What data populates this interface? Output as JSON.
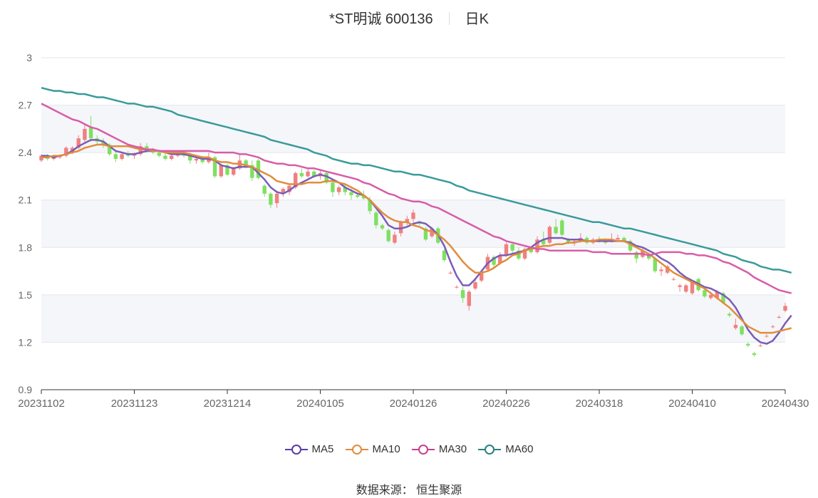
{
  "chart_data": {
    "type": "candlestick",
    "title": "*ST明诚 600136",
    "period_label": "日K",
    "ylim": [
      0.9,
      3.0
    ],
    "y_ticks": [
      "3",
      "2.7",
      "2.4",
      "2.1",
      "1.8",
      "1.5",
      "1.2",
      "0.9"
    ],
    "x_ticks": [
      "20231102",
      "20231123",
      "20231214",
      "20240105",
      "20240126",
      "20240226",
      "20240318",
      "20240410",
      "20240430"
    ],
    "up_color": "#f08080",
    "down_color": "#7ee060",
    "candles": [
      {
        "o": 2.35,
        "h": 2.39,
        "l": 2.34,
        "c": 2.38
      },
      {
        "o": 2.38,
        "h": 2.39,
        "l": 2.35,
        "c": 2.36
      },
      {
        "o": 2.36,
        "h": 2.38,
        "l": 2.35,
        "c": 2.37
      },
      {
        "o": 2.37,
        "h": 2.39,
        "l": 2.36,
        "c": 2.38
      },
      {
        "o": 2.38,
        "h": 2.44,
        "l": 2.37,
        "c": 2.43
      },
      {
        "o": 2.4,
        "h": 2.44,
        "l": 2.39,
        "c": 2.43
      },
      {
        "o": 2.43,
        "h": 2.51,
        "l": 2.42,
        "c": 2.49
      },
      {
        "o": 2.48,
        "h": 2.58,
        "l": 2.46,
        "c": 2.55
      },
      {
        "o": 2.56,
        "h": 2.63,
        "l": 2.47,
        "c": 2.49
      },
      {
        "o": 2.49,
        "h": 2.51,
        "l": 2.45,
        "c": 2.47
      },
      {
        "o": 2.47,
        "h": 2.49,
        "l": 2.43,
        "c": 2.45
      },
      {
        "o": 2.45,
        "h": 2.46,
        "l": 2.38,
        "c": 2.39
      },
      {
        "o": 2.39,
        "h": 2.41,
        "l": 2.34,
        "c": 2.36
      },
      {
        "o": 2.36,
        "h": 2.4,
        "l": 2.35,
        "c": 2.39
      },
      {
        "o": 2.39,
        "h": 2.41,
        "l": 2.37,
        "c": 2.38
      },
      {
        "o": 2.38,
        "h": 2.4,
        "l": 2.36,
        "c": 2.39
      },
      {
        "o": 2.39,
        "h": 2.46,
        "l": 2.38,
        "c": 2.44
      },
      {
        "o": 2.44,
        "h": 2.46,
        "l": 2.4,
        "c": 2.41
      },
      {
        "o": 2.41,
        "h": 2.43,
        "l": 2.39,
        "c": 2.4
      },
      {
        "o": 2.4,
        "h": 2.42,
        "l": 2.37,
        "c": 2.38
      },
      {
        "o": 2.38,
        "h": 2.4,
        "l": 2.35,
        "c": 2.36
      },
      {
        "o": 2.36,
        "h": 2.39,
        "l": 2.35,
        "c": 2.38
      },
      {
        "o": 2.38,
        "h": 2.41,
        "l": 2.37,
        "c": 2.4
      },
      {
        "o": 2.4,
        "h": 2.41,
        "l": 2.37,
        "c": 2.38
      },
      {
        "o": 2.38,
        "h": 2.4,
        "l": 2.33,
        "c": 2.35
      },
      {
        "o": 2.35,
        "h": 2.38,
        "l": 2.33,
        "c": 2.36
      },
      {
        "o": 2.36,
        "h": 2.38,
        "l": 2.33,
        "c": 2.34
      },
      {
        "o": 2.34,
        "h": 2.4,
        "l": 2.33,
        "c": 2.37
      },
      {
        "o": 2.37,
        "h": 2.38,
        "l": 2.24,
        "c": 2.25
      },
      {
        "o": 2.25,
        "h": 2.33,
        "l": 2.24,
        "c": 2.32
      },
      {
        "o": 2.32,
        "h": 2.33,
        "l": 2.25,
        "c": 2.26
      },
      {
        "o": 2.26,
        "h": 2.31,
        "l": 2.25,
        "c": 2.3
      },
      {
        "o": 2.3,
        "h": 2.39,
        "l": 2.29,
        "c": 2.35
      },
      {
        "o": 2.35,
        "h": 2.36,
        "l": 2.3,
        "c": 2.32
      },
      {
        "o": 2.32,
        "h": 2.35,
        "l": 2.22,
        "c": 2.24
      },
      {
        "o": 2.35,
        "h": 2.36,
        "l": 2.23,
        "c": 2.24
      },
      {
        "o": 2.19,
        "h": 2.2,
        "l": 2.12,
        "c": 2.14
      },
      {
        "o": 2.14,
        "h": 2.15,
        "l": 2.05,
        "c": 2.07
      },
      {
        "o": 2.08,
        "h": 2.16,
        "l": 2.05,
        "c": 2.14
      },
      {
        "o": 2.14,
        "h": 2.18,
        "l": 2.12,
        "c": 2.17
      },
      {
        "o": 2.15,
        "h": 2.2,
        "l": 2.13,
        "c": 2.19
      },
      {
        "o": 2.18,
        "h": 2.28,
        "l": 2.17,
        "c": 2.27
      },
      {
        "o": 2.27,
        "h": 2.3,
        "l": 2.24,
        "c": 2.25
      },
      {
        "o": 2.25,
        "h": 2.3,
        "l": 2.24,
        "c": 2.28
      },
      {
        "o": 2.28,
        "h": 2.29,
        "l": 2.24,
        "c": 2.25
      },
      {
        "o": 2.25,
        "h": 2.29,
        "l": 2.23,
        "c": 2.27
      },
      {
        "o": 2.27,
        "h": 2.28,
        "l": 2.2,
        "c": 2.21
      },
      {
        "o": 2.21,
        "h": 2.23,
        "l": 2.12,
        "c": 2.15
      },
      {
        "o": 2.15,
        "h": 2.19,
        "l": 2.13,
        "c": 2.18
      },
      {
        "o": 2.18,
        "h": 2.2,
        "l": 2.13,
        "c": 2.15
      },
      {
        "o": 2.15,
        "h": 2.17,
        "l": 2.1,
        "c": 2.13
      },
      {
        "o": 2.13,
        "h": 2.15,
        "l": 2.11,
        "c": 2.12
      },
      {
        "o": 2.13,
        "h": 2.16,
        "l": 2.1,
        "c": 2.11
      },
      {
        "o": 2.1,
        "h": 2.12,
        "l": 2.01,
        "c": 2.03
      },
      {
        "o": 2.02,
        "h": 2.03,
        "l": 1.92,
        "c": 1.94
      },
      {
        "o": 1.94,
        "h": 1.95,
        "l": 1.91,
        "c": 1.92
      },
      {
        "o": 1.91,
        "h": 1.92,
        "l": 1.83,
        "c": 1.84
      },
      {
        "o": 1.83,
        "h": 1.9,
        "l": 1.82,
        "c": 1.88
      },
      {
        "o": 1.89,
        "h": 1.97,
        "l": 1.87,
        "c": 1.96
      },
      {
        "o": 1.96,
        "h": 2.0,
        "l": 1.94,
        "c": 1.98
      },
      {
        "o": 1.98,
        "h": 2.04,
        "l": 1.96,
        "c": 2.02
      },
      {
        "o": 1.96,
        "h": 1.97,
        "l": 1.94,
        "c": 1.95
      },
      {
        "o": 1.92,
        "h": 1.93,
        "l": 1.84,
        "c": 1.85
      },
      {
        "o": 1.87,
        "h": 1.93,
        "l": 1.86,
        "c": 1.92
      },
      {
        "o": 1.92,
        "h": 1.93,
        "l": 1.82,
        "c": 1.83
      },
      {
        "o": 1.78,
        "h": 1.79,
        "l": 1.71,
        "c": 1.72
      },
      {
        "o": 1.64,
        "h": 1.65,
        "l": 1.63,
        "c": 1.64
      },
      {
        "o": 1.55,
        "h": 1.56,
        "l": 1.54,
        "c": 1.55
      },
      {
        "o": 1.53,
        "h": 1.55,
        "l": 1.45,
        "c": 1.48
      },
      {
        "o": 1.43,
        "h": 1.53,
        "l": 1.4,
        "c": 1.52
      },
      {
        "o": 1.54,
        "h": 1.6,
        "l": 1.53,
        "c": 1.58
      },
      {
        "o": 1.59,
        "h": 1.65,
        "l": 1.58,
        "c": 1.64
      },
      {
        "o": 1.66,
        "h": 1.76,
        "l": 1.65,
        "c": 1.74
      },
      {
        "o": 1.74,
        "h": 1.75,
        "l": 1.67,
        "c": 1.69
      },
      {
        "o": 1.7,
        "h": 1.77,
        "l": 1.69,
        "c": 1.75
      },
      {
        "o": 1.75,
        "h": 1.83,
        "l": 1.74,
        "c": 1.82
      },
      {
        "o": 1.82,
        "h": 1.83,
        "l": 1.76,
        "c": 1.78
      },
      {
        "o": 1.78,
        "h": 1.8,
        "l": 1.72,
        "c": 1.73
      },
      {
        "o": 1.73,
        "h": 1.8,
        "l": 1.72,
        "c": 1.79
      },
      {
        "o": 1.79,
        "h": 1.81,
        "l": 1.76,
        "c": 1.77
      },
      {
        "o": 1.77,
        "h": 1.87,
        "l": 1.76,
        "c": 1.85
      },
      {
        "o": 1.85,
        "h": 1.9,
        "l": 1.81,
        "c": 1.82
      },
      {
        "o": 1.83,
        "h": 1.94,
        "l": 1.82,
        "c": 1.93
      },
      {
        "o": 1.93,
        "h": 1.98,
        "l": 1.88,
        "c": 1.89
      },
      {
        "o": 1.97,
        "h": 1.98,
        "l": 1.87,
        "c": 1.88
      },
      {
        "o": 1.85,
        "h": 1.86,
        "l": 1.82,
        "c": 1.83
      },
      {
        "o": 1.83,
        "h": 1.85,
        "l": 1.81,
        "c": 1.84
      },
      {
        "o": 1.84,
        "h": 1.89,
        "l": 1.83,
        "c": 1.86
      },
      {
        "o": 1.86,
        "h": 1.87,
        "l": 1.82,
        "c": 1.83
      },
      {
        "o": 1.83,
        "h": 1.86,
        "l": 1.82,
        "c": 1.85
      },
      {
        "o": 1.85,
        "h": 1.87,
        "l": 1.83,
        "c": 1.84
      },
      {
        "o": 1.84,
        "h": 1.86,
        "l": 1.82,
        "c": 1.83
      },
      {
        "o": 1.84,
        "h": 1.89,
        "l": 1.83,
        "c": 1.85
      },
      {
        "o": 1.85,
        "h": 1.88,
        "l": 1.84,
        "c": 1.86
      },
      {
        "o": 1.86,
        "h": 1.87,
        "l": 1.83,
        "c": 1.84
      },
      {
        "o": 1.84,
        "h": 1.85,
        "l": 1.77,
        "c": 1.78
      },
      {
        "o": 1.77,
        "h": 1.78,
        "l": 1.7,
        "c": 1.73
      },
      {
        "o": 1.74,
        "h": 1.8,
        "l": 1.73,
        "c": 1.78
      },
      {
        "o": 1.75,
        "h": 1.76,
        "l": 1.72,
        "c": 1.73
      },
      {
        "o": 1.73,
        "h": 1.74,
        "l": 1.64,
        "c": 1.65
      },
      {
        "o": 1.65,
        "h": 1.68,
        "l": 1.62,
        "c": 1.66
      },
      {
        "o": 1.64,
        "h": 1.69,
        "l": 1.63,
        "c": 1.68
      },
      {
        "o": 1.6,
        "h": 1.61,
        "l": 1.59,
        "c": 1.6
      },
      {
        "o": 1.55,
        "h": 1.57,
        "l": 1.52,
        "c": 1.56
      },
      {
        "o": 1.52,
        "h": 1.57,
        "l": 1.51,
        "c": 1.56
      },
      {
        "o": 1.51,
        "h": 1.59,
        "l": 1.5,
        "c": 1.58
      },
      {
        "o": 1.6,
        "h": 1.61,
        "l": 1.52,
        "c": 1.53
      },
      {
        "o": 1.53,
        "h": 1.55,
        "l": 1.48,
        "c": 1.49
      },
      {
        "o": 1.48,
        "h": 1.52,
        "l": 1.47,
        "c": 1.5
      },
      {
        "o": 1.48,
        "h": 1.53,
        "l": 1.47,
        "c": 1.52
      },
      {
        "o": 1.51,
        "h": 1.52,
        "l": 1.44,
        "c": 1.45
      },
      {
        "o": 1.38,
        "h": 1.39,
        "l": 1.36,
        "c": 1.37
      },
      {
        "o": 1.29,
        "h": 1.35,
        "l": 1.28,
        "c": 1.31
      },
      {
        "o": 1.3,
        "h": 1.31,
        "l": 1.24,
        "c": 1.25
      },
      {
        "o": 1.19,
        "h": 1.2,
        "l": 1.17,
        "c": 1.18
      },
      {
        "o": 1.13,
        "h": 1.14,
        "l": 1.11,
        "c": 1.12
      },
      {
        "o": 1.18,
        "h": 1.19,
        "l": 1.17,
        "c": 1.18
      },
      {
        "o": 1.24,
        "h": 1.25,
        "l": 1.23,
        "c": 1.24
      },
      {
        "o": 1.3,
        "h": 1.31,
        "l": 1.29,
        "c": 1.3
      },
      {
        "o": 1.36,
        "h": 1.37,
        "l": 1.35,
        "c": 1.36
      },
      {
        "o": 1.4,
        "h": 1.45,
        "l": 1.39,
        "c": 1.43
      }
    ],
    "series": [
      {
        "name": "MA5",
        "color": "#7a5cb8",
        "values": [
          2.38,
          2.38,
          2.37,
          2.38,
          2.39,
          2.41,
          2.44,
          2.46,
          2.48,
          2.48,
          2.47,
          2.44,
          2.41,
          2.4,
          2.39,
          2.39,
          2.4,
          2.41,
          2.41,
          2.41,
          2.4,
          2.39,
          2.39,
          2.39,
          2.38,
          2.37,
          2.36,
          2.36,
          2.35,
          2.32,
          2.31,
          2.3,
          2.31,
          2.31,
          2.31,
          2.27,
          2.23,
          2.18,
          2.15,
          2.14,
          2.16,
          2.19,
          2.21,
          2.23,
          2.25,
          2.26,
          2.25,
          2.23,
          2.21,
          2.18,
          2.16,
          2.14,
          2.13,
          2.1,
          2.05,
          2.0,
          1.94,
          1.92,
          1.92,
          1.93,
          1.95,
          1.96,
          1.95,
          1.92,
          1.88,
          1.81,
          1.71,
          1.62,
          1.56,
          1.56,
          1.6,
          1.65,
          1.7,
          1.73,
          1.75,
          1.75,
          1.76,
          1.77,
          1.78,
          1.8,
          1.83,
          1.85,
          1.86,
          1.86,
          1.86,
          1.85,
          1.85,
          1.85,
          1.84,
          1.84,
          1.84,
          1.84,
          1.84,
          1.84,
          1.84,
          1.83,
          1.81,
          1.8,
          1.78,
          1.76,
          1.73,
          1.71,
          1.68,
          1.64,
          1.61,
          1.59,
          1.57,
          1.55,
          1.54,
          1.52,
          1.5,
          1.47,
          1.42,
          1.35,
          1.28,
          1.23,
          1.2,
          1.19,
          1.21,
          1.26,
          1.32,
          1.37
        ]
      },
      {
        "name": "MA10",
        "color": "#e08d3c",
        "values": [
          2.37,
          2.37,
          2.38,
          2.38,
          2.39,
          2.4,
          2.41,
          2.43,
          2.44,
          2.45,
          2.45,
          2.44,
          2.44,
          2.44,
          2.44,
          2.43,
          2.42,
          2.42,
          2.41,
          2.41,
          2.4,
          2.4,
          2.4,
          2.4,
          2.39,
          2.38,
          2.37,
          2.37,
          2.35,
          2.34,
          2.34,
          2.33,
          2.33,
          2.32,
          2.31,
          2.29,
          2.27,
          2.25,
          2.22,
          2.21,
          2.2,
          2.2,
          2.2,
          2.21,
          2.21,
          2.21,
          2.22,
          2.22,
          2.21,
          2.2,
          2.18,
          2.16,
          2.13,
          2.1,
          2.06,
          2.02,
          1.99,
          1.97,
          1.96,
          1.96,
          1.94,
          1.93,
          1.91,
          1.9,
          1.88,
          1.85,
          1.81,
          1.76,
          1.71,
          1.67,
          1.64,
          1.64,
          1.65,
          1.67,
          1.7,
          1.72,
          1.75,
          1.76,
          1.78,
          1.79,
          1.8,
          1.81,
          1.81,
          1.82,
          1.82,
          1.83,
          1.83,
          1.84,
          1.84,
          1.84,
          1.85,
          1.85,
          1.85,
          1.84,
          1.84,
          1.82,
          1.8,
          1.78,
          1.76,
          1.73,
          1.7,
          1.67,
          1.64,
          1.62,
          1.6,
          1.58,
          1.56,
          1.54,
          1.51,
          1.48,
          1.45,
          1.42,
          1.38,
          1.34,
          1.3,
          1.28,
          1.26,
          1.26,
          1.26,
          1.27,
          1.28,
          1.29
        ]
      },
      {
        "name": "MA30",
        "color": "#d85ca8",
        "values": [
          2.71,
          2.69,
          2.67,
          2.65,
          2.63,
          2.61,
          2.6,
          2.58,
          2.56,
          2.55,
          2.53,
          2.51,
          2.49,
          2.47,
          2.45,
          2.44,
          2.43,
          2.42,
          2.42,
          2.41,
          2.41,
          2.41,
          2.41,
          2.41,
          2.41,
          2.41,
          2.41,
          2.41,
          2.4,
          2.4,
          2.4,
          2.4,
          2.39,
          2.39,
          2.38,
          2.37,
          2.35,
          2.34,
          2.33,
          2.33,
          2.32,
          2.32,
          2.31,
          2.3,
          2.3,
          2.29,
          2.28,
          2.27,
          2.26,
          2.25,
          2.24,
          2.23,
          2.21,
          2.2,
          2.18,
          2.16,
          2.14,
          2.13,
          2.11,
          2.1,
          2.09,
          2.09,
          2.08,
          2.06,
          2.05,
          2.03,
          2.01,
          1.99,
          1.97,
          1.95,
          1.93,
          1.91,
          1.89,
          1.87,
          1.86,
          1.84,
          1.83,
          1.82,
          1.81,
          1.8,
          1.79,
          1.79,
          1.78,
          1.78,
          1.78,
          1.78,
          1.78,
          1.78,
          1.78,
          1.77,
          1.77,
          1.77,
          1.76,
          1.76,
          1.76,
          1.76,
          1.76,
          1.76,
          1.75,
          1.76,
          1.77,
          1.77,
          1.77,
          1.77,
          1.76,
          1.76,
          1.75,
          1.75,
          1.74,
          1.73,
          1.71,
          1.7,
          1.68,
          1.66,
          1.64,
          1.61,
          1.59,
          1.57,
          1.55,
          1.53,
          1.52,
          1.51
        ]
      },
      {
        "name": "MA60",
        "color": "#3a9a9a",
        "values": [
          2.81,
          2.8,
          2.79,
          2.79,
          2.78,
          2.78,
          2.77,
          2.77,
          2.76,
          2.75,
          2.75,
          2.74,
          2.73,
          2.72,
          2.71,
          2.71,
          2.7,
          2.69,
          2.69,
          2.68,
          2.67,
          2.66,
          2.64,
          2.63,
          2.62,
          2.61,
          2.6,
          2.59,
          2.58,
          2.57,
          2.56,
          2.55,
          2.54,
          2.53,
          2.52,
          2.51,
          2.5,
          2.48,
          2.47,
          2.46,
          2.45,
          2.44,
          2.43,
          2.42,
          2.4,
          2.39,
          2.38,
          2.36,
          2.35,
          2.34,
          2.33,
          2.33,
          2.32,
          2.32,
          2.31,
          2.3,
          2.29,
          2.28,
          2.28,
          2.27,
          2.26,
          2.26,
          2.25,
          2.24,
          2.23,
          2.22,
          2.21,
          2.19,
          2.18,
          2.16,
          2.15,
          2.14,
          2.13,
          2.12,
          2.11,
          2.1,
          2.09,
          2.08,
          2.07,
          2.06,
          2.05,
          2.04,
          2.03,
          2.02,
          2.01,
          2.0,
          1.99,
          1.98,
          1.97,
          1.96,
          1.96,
          1.95,
          1.94,
          1.93,
          1.92,
          1.92,
          1.91,
          1.9,
          1.89,
          1.88,
          1.87,
          1.86,
          1.85,
          1.84,
          1.83,
          1.82,
          1.81,
          1.8,
          1.79,
          1.78,
          1.76,
          1.75,
          1.74,
          1.72,
          1.71,
          1.7,
          1.68,
          1.67,
          1.66,
          1.66,
          1.65,
          1.64
        ]
      }
    ],
    "legend": [
      "MA5",
      "MA10",
      "MA30",
      "MA60"
    ],
    "source": "数据来源： 恒生聚源"
  }
}
